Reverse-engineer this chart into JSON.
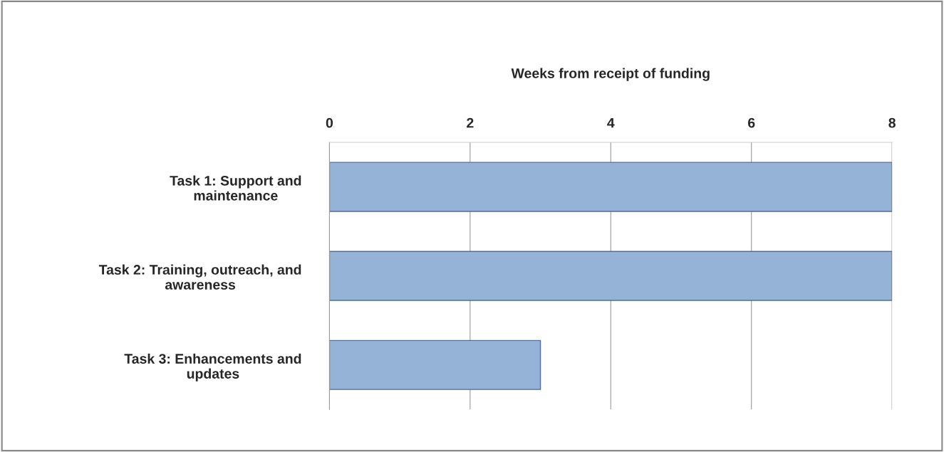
{
  "chart_data": {
    "type": "bar",
    "orientation": "horizontal",
    "xlabel": "Weeks from receipt of funding",
    "categories": [
      "Task 1: Support and\nmaintenance",
      "Task 2: Training, outreach, and\nawareness",
      "Task 3: Enhancements and\nupdates"
    ],
    "values": [
      8,
      8,
      3
    ],
    "color": "#95b3d7",
    "xlim": [
      0,
      8
    ],
    "xticks": [
      0,
      2,
      4,
      6,
      8
    ],
    "grid": "x",
    "legend": false
  }
}
